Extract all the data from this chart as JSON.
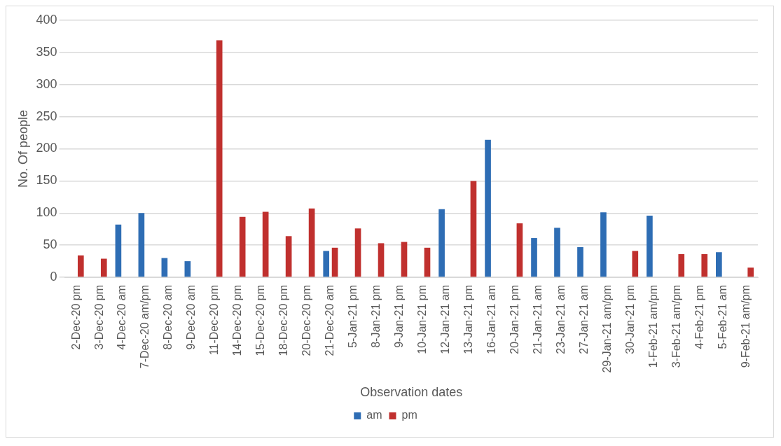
{
  "chart_data": {
    "type": "bar",
    "xlabel": "Observation dates",
    "ylabel": "No. Of people",
    "categories": [
      "2-Dec-20 pm",
      "3-Dec-20 pm",
      "4-Dec-20 am",
      "7-Dec-20 am/pm",
      "8-Dec-20 am",
      "9-Dec-20 am",
      "11-Dec-20 pm",
      "14-Dec-20 pm",
      "15-Dec-20 pm",
      "18-Dec-20 pm",
      "20-Dec-20 pm",
      "21-Dec-20 am",
      "5-Jan-21 pm",
      "8-Jan-21 pm",
      "9-Jan-21 pm",
      "10-Jan-21 pm",
      "12-Jan-21 am",
      "13-Jan-21 pm",
      "16-Jan-21 am",
      "20-Jan-21 pm",
      "21-Jan-21 am",
      "23-Jan-21 am",
      "27-Jan-21 am",
      "29-Jan-21 am/pm",
      "30-Jan-21 pm",
      "1-Feb-21 am/pm",
      "3-Feb-21 am/pm",
      "4-Feb-21 pm",
      "5-Feb-21 am",
      "9-Feb-21 am/pm"
    ],
    "series": [
      {
        "name": "am",
        "color": "#2e6db4",
        "values": [
          null,
          null,
          82,
          100,
          30,
          25,
          null,
          null,
          null,
          null,
          null,
          41,
          null,
          null,
          null,
          null,
          106,
          null,
          214,
          null,
          61,
          77,
          47,
          101,
          null,
          96,
          null,
          null,
          39,
          null
        ]
      },
      {
        "name": "pm",
        "color": "#c0302e",
        "values": [
          34,
          29,
          null,
          null,
          null,
          null,
          369,
          94,
          102,
          64,
          107,
          46,
          76,
          53,
          55,
          46,
          null,
          150,
          null,
          84,
          null,
          null,
          null,
          null,
          41,
          null,
          36,
          36,
          null,
          15
        ]
      }
    ],
    "ylim": [
      0,
      400
    ],
    "yticks": [
      0,
      50,
      100,
      150,
      200,
      250,
      300,
      350,
      400
    ],
    "grid": "y",
    "legend": "bottom"
  }
}
